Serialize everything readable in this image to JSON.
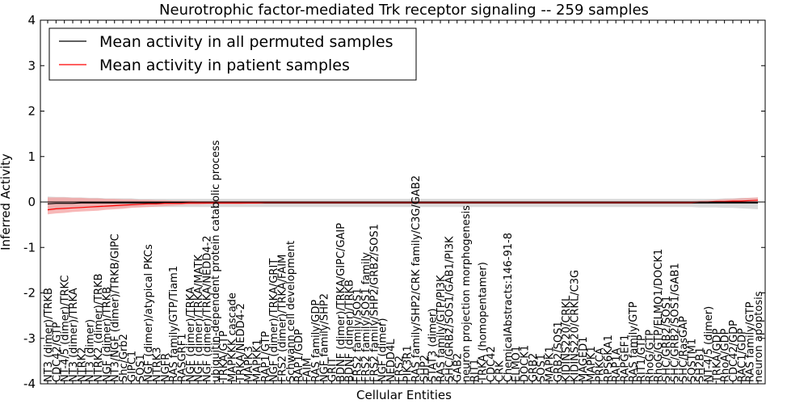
{
  "chart_data": {
    "type": "line",
    "title": "Neurotrophic factor-mediated Trk receptor signaling -- 259 samples",
    "xlabel": "Cellular Entities",
    "ylabel": "Inferred Activity",
    "ylim": [
      -4,
      4
    ],
    "yticks": [
      -4,
      -3,
      -2,
      -1,
      0,
      1,
      2,
      3,
      4
    ],
    "grid": false,
    "legend_position": "top-left",
    "categories": [
      "NT3 (dimer)/TRKB",
      "CDC42/GTP",
      "NT-4/5 (dimer)/TRKC",
      "NT3 (dimer)/TRKA",
      "NTRK2",
      "NT3 (dimer)",
      "NTRK2 (dimer)/TRKB",
      "NGF (dimer)/TRKB",
      "NT3/NGF (dimer)/TRKB/GIPC",
      "Shc/Grb2",
      "GIPC1",
      "SOS1",
      "NGF (dimer)/atypical PKCs",
      "NTRK3",
      "NGFR",
      "RAS family/GTP/Tiam1",
      "RASGRF1",
      "NGF (dimer)/TRKA",
      "NGF (dimer)/TRKA/MATK",
      "NGF (dimer)/TRKA/NEDD4-2",
      "ubiquitin-dependent protein catabolic process",
      "TRKA/GTP",
      "MAPKKK cascade",
      "TRKA/NEDD4-2",
      "MAPK3",
      "MAPKK1",
      "RAP1/GTP",
      "NGF (dimer)/TRKA/GRIT",
      "FRS2 (dimer)/TRKA/FAIM",
      "Schwann cell development",
      "RAP1/GDP",
      "FAIM",
      "RAS family/GDP",
      "NGF family/SHP2",
      "GRIT",
      "BDNF (dimer)/TRKA/GIPC/GAIP",
      "BDNF (dimer)/TRKB",
      "FRS2 family/SOS1",
      "FRS2 family/SOS1 family",
      "FRS2 family/SHP2/GRB2/SOS1",
      "NGF (dimer)",
      "NEDD4L",
      "FRS2",
      "PIK3R1",
      "RAS family/SHP2/CRK family/C3G/GAB2",
      "SHP2",
      "STAT3 (dimer)",
      "RAS family/GTP/PI3K",
      "SHC/GRB2/SOS1/GAB1/PI3K",
      "GAB2",
      "neuron projection morphogenesis",
      "RIT1",
      "TRKA (homopentamer)",
      "CDC42",
      "CRK",
      "ChemicalAbstracts:146-91-8",
      "ELMO1",
      "DOCK1",
      "GRB2",
      "SOS1",
      "MAPK1",
      "GRB2/SOS1",
      "KIDINS220/CRKL",
      "KIDINS220/CRKL/C3G",
      "MAGED1",
      "MAPK1",
      "PRKCA",
      "RPS6KA1",
      "RAP1A",
      "RAPGEF1",
      "RAS family/GTP",
      "RIT1/GTP",
      "RhoG/GTP",
      "RhoG/GTP/ELMO1/DOCK1",
      "SHC/GRB2/SOS1",
      "SHC/GRB2/SOS1/GAB1",
      "SHC/RasGAP",
      "SQSTM1",
      "SH2B1",
      "NT-4/5 (dimer)",
      "TRKA/GDP",
      "RhoA/GDP",
      "CDC42/GDP",
      "RAC1/GDP",
      "RAS family/GTP",
      "neuron apoptosis"
    ],
    "series": [
      {
        "name": "Mean activity in all permuted samples",
        "color": "#000000",
        "band_color": "#bbbbbb",
        "values": [
          -0.04,
          -0.03,
          -0.03,
          -0.03,
          -0.02,
          -0.02,
          -0.02,
          -0.02,
          -0.02,
          -0.02,
          -0.02,
          -0.02,
          -0.02,
          -0.02,
          -0.02,
          -0.02,
          -0.02,
          -0.02,
          -0.02,
          -0.02,
          -0.02,
          -0.02,
          -0.02,
          -0.02,
          -0.02,
          -0.02,
          -0.02,
          -0.02,
          -0.02,
          -0.02,
          -0.02,
          -0.02,
          -0.02,
          -0.02,
          -0.02,
          -0.02,
          -0.02,
          -0.02,
          -0.02,
          -0.02,
          -0.02,
          -0.02,
          -0.02,
          -0.02,
          -0.02,
          -0.02,
          -0.02,
          -0.02,
          -0.02,
          -0.02,
          -0.02,
          -0.02,
          -0.02,
          -0.02,
          -0.02,
          -0.02,
          -0.02,
          -0.02,
          -0.02,
          -0.02,
          -0.02,
          -0.02,
          -0.02,
          -0.02,
          -0.02,
          -0.02,
          -0.02,
          -0.02,
          -0.02,
          -0.02,
          -0.02,
          -0.02,
          -0.02,
          -0.02,
          -0.02,
          -0.02,
          -0.02,
          -0.02,
          -0.02,
          -0.02,
          -0.02,
          -0.02,
          -0.02,
          -0.02,
          -0.02,
          -0.02
        ],
        "lower": [
          -0.2,
          -0.18,
          -0.17,
          -0.15,
          -0.14,
          -0.13,
          -0.13,
          -0.12,
          -0.12,
          -0.12,
          -0.11,
          -0.11,
          -0.11,
          -0.11,
          -0.11,
          -0.11,
          -0.11,
          -0.11,
          -0.11,
          -0.11,
          -0.11,
          -0.11,
          -0.11,
          -0.11,
          -0.11,
          -0.11,
          -0.11,
          -0.11,
          -0.11,
          -0.11,
          -0.11,
          -0.11,
          -0.11,
          -0.11,
          -0.11,
          -0.11,
          -0.11,
          -0.11,
          -0.11,
          -0.11,
          -0.11,
          -0.11,
          -0.11,
          -0.11,
          -0.11,
          -0.11,
          -0.11,
          -0.11,
          -0.11,
          -0.11,
          -0.11,
          -0.11,
          -0.11,
          -0.11,
          -0.11,
          -0.11,
          -0.11,
          -0.11,
          -0.11,
          -0.11,
          -0.11,
          -0.11,
          -0.11,
          -0.11,
          -0.11,
          -0.11,
          -0.11,
          -0.11,
          -0.11,
          -0.11,
          -0.11,
          -0.11,
          -0.11,
          -0.11,
          -0.11,
          -0.11,
          -0.11,
          -0.11,
          -0.12,
          -0.12,
          -0.12,
          -0.13,
          -0.13,
          -0.14,
          -0.15,
          -0.16
        ],
        "upper": [
          0.12,
          0.11,
          0.11,
          0.1,
          0.1,
          0.09,
          0.09,
          0.08,
          0.08,
          0.08,
          0.08,
          0.07,
          0.07,
          0.07,
          0.07,
          0.07,
          0.07,
          0.07,
          0.07,
          0.07,
          0.07,
          0.07,
          0.07,
          0.07,
          0.07,
          0.07,
          0.07,
          0.07,
          0.07,
          0.07,
          0.07,
          0.07,
          0.07,
          0.07,
          0.07,
          0.07,
          0.07,
          0.07,
          0.07,
          0.07,
          0.07,
          0.07,
          0.07,
          0.07,
          0.07,
          0.07,
          0.07,
          0.07,
          0.07,
          0.07,
          0.07,
          0.07,
          0.07,
          0.07,
          0.07,
          0.07,
          0.07,
          0.07,
          0.07,
          0.07,
          0.07,
          0.07,
          0.07,
          0.07,
          0.07,
          0.07,
          0.07,
          0.07,
          0.07,
          0.07,
          0.07,
          0.07,
          0.07,
          0.07,
          0.07,
          0.07,
          0.07,
          0.07,
          0.07,
          0.07,
          0.07,
          0.08,
          0.08,
          0.09,
          0.09,
          0.1
        ]
      },
      {
        "name": "Mean activity in patient samples",
        "color": "#ff0000",
        "band_color": "#f4a0a0",
        "values": [
          -0.17,
          -0.15,
          -0.14,
          -0.13,
          -0.12,
          -0.11,
          -0.1,
          -0.09,
          -0.08,
          -0.07,
          -0.06,
          -0.05,
          -0.04,
          -0.04,
          -0.03,
          -0.03,
          -0.03,
          -0.02,
          -0.02,
          -0.02,
          -0.02,
          -0.02,
          -0.02,
          -0.02,
          -0.02,
          -0.02,
          -0.01,
          -0.01,
          -0.01,
          -0.01,
          -0.01,
          -0.01,
          -0.01,
          -0.01,
          -0.01,
          -0.01,
          -0.01,
          -0.01,
          -0.01,
          -0.01,
          -0.01,
          -0.01,
          -0.01,
          -0.01,
          -0.01,
          -0.01,
          -0.01,
          -0.01,
          -0.01,
          -0.01,
          -0.01,
          -0.01,
          -0.01,
          -0.01,
          -0.01,
          -0.01,
          -0.01,
          -0.01,
          -0.01,
          -0.01,
          -0.01,
          -0.01,
          -0.01,
          -0.01,
          -0.01,
          -0.01,
          -0.01,
          -0.01,
          -0.01,
          -0.01,
          -0.01,
          -0.01,
          -0.01,
          -0.01,
          -0.01,
          -0.01,
          -0.01,
          -0.01,
          0.0,
          0.0,
          0.01,
          0.01,
          0.02,
          0.02,
          0.03,
          0.04
        ],
        "lower": [
          -0.27,
          -0.25,
          -0.24,
          -0.22,
          -0.21,
          -0.2,
          -0.19,
          -0.17,
          -0.16,
          -0.15,
          -0.13,
          -0.12,
          -0.11,
          -0.1,
          -0.09,
          -0.08,
          -0.07,
          -0.06,
          -0.06,
          -0.05,
          -0.05,
          -0.05,
          -0.05,
          -0.05,
          -0.04,
          -0.04,
          -0.04,
          -0.04,
          -0.04,
          -0.04,
          -0.04,
          -0.04,
          -0.04,
          -0.04,
          -0.04,
          -0.04,
          -0.04,
          -0.04,
          -0.04,
          -0.04,
          -0.04,
          -0.04,
          -0.04,
          -0.04,
          -0.04,
          -0.04,
          -0.04,
          -0.04,
          -0.04,
          -0.04,
          -0.04,
          -0.04,
          -0.04,
          -0.04,
          -0.04,
          -0.04,
          -0.04,
          -0.04,
          -0.04,
          -0.04,
          -0.04,
          -0.04,
          -0.04,
          -0.04,
          -0.04,
          -0.04,
          -0.04,
          -0.04,
          -0.04,
          -0.04,
          -0.04,
          -0.04,
          -0.04,
          -0.04,
          -0.04,
          -0.04,
          -0.04,
          -0.04,
          -0.03,
          -0.03,
          -0.02,
          -0.02,
          -0.02,
          -0.02,
          -0.02,
          -0.03
        ],
        "upper": [
          0.1,
          0.1,
          0.1,
          0.09,
          0.09,
          0.08,
          0.08,
          0.07,
          0.07,
          0.06,
          0.06,
          0.05,
          0.05,
          0.04,
          0.04,
          0.03,
          0.03,
          0.03,
          0.02,
          0.02,
          0.02,
          0.02,
          0.02,
          0.02,
          0.02,
          0.02,
          0.02,
          0.02,
          0.02,
          0.02,
          0.02,
          0.02,
          0.02,
          0.02,
          0.02,
          0.02,
          0.02,
          0.02,
          0.02,
          0.02,
          0.02,
          0.02,
          0.02,
          0.02,
          0.02,
          0.02,
          0.02,
          0.02,
          0.02,
          0.02,
          0.02,
          0.02,
          0.02,
          0.02,
          0.02,
          0.02,
          0.02,
          0.02,
          0.02,
          0.02,
          0.02,
          0.02,
          0.02,
          0.02,
          0.02,
          0.02,
          0.02,
          0.02,
          0.02,
          0.02,
          0.02,
          0.02,
          0.02,
          0.02,
          0.02,
          0.02,
          0.02,
          0.02,
          0.03,
          0.04,
          0.05,
          0.06,
          0.07,
          0.08,
          0.09,
          0.1
        ]
      }
    ]
  }
}
